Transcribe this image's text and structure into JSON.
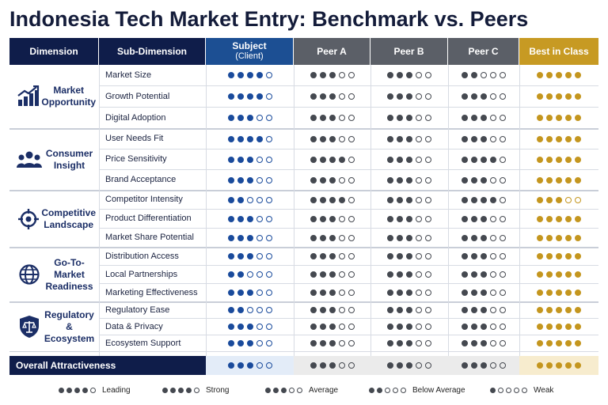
{
  "title": "Indonesia Tech Market Entry: Benchmark vs. Peers",
  "columns": {
    "dimension": "Dimension",
    "sub_dimension": "Sub-Dimension",
    "subject": "Subject",
    "subject_sub": "(Client)",
    "peer_a": "Peer A",
    "peer_b": "Peer B",
    "peer_c": "Peer C",
    "best": "Best in Class"
  },
  "colors": {
    "subject": "#1a4b9c",
    "peer": "#454950",
    "best": "#c4961f",
    "header_dark": "#0f1d4a"
  },
  "groups": [
    {
      "label": "Market Opportunity",
      "icon": "growth-chart-icon",
      "rows": [
        {
          "sub": "Market Size",
          "scores": [
            4,
            3,
            3,
            2,
            5
          ]
        },
        {
          "sub": "Growth Potential",
          "scores": [
            4,
            3,
            3,
            3,
            5
          ]
        },
        {
          "sub": "Digital Adoption",
          "scores": [
            3,
            3,
            3,
            3,
            5
          ]
        }
      ]
    },
    {
      "label": "Consumer Insight",
      "icon": "people-group-icon",
      "rows": [
        {
          "sub": "User Needs Fit",
          "scores": [
            4,
            3,
            3,
            3,
            5
          ]
        },
        {
          "sub": "Price Sensitivity",
          "scores": [
            3,
            4,
            3,
            4,
            5
          ]
        },
        {
          "sub": "Brand Acceptance",
          "scores": [
            3,
            3,
            3,
            3,
            5
          ]
        }
      ]
    },
    {
      "label": "Competitive Landscape",
      "icon": "target-crosshair-icon",
      "rows": [
        {
          "sub": "Competitor Intensity",
          "scores": [
            2,
            4,
            3,
            4,
            3
          ]
        },
        {
          "sub": "Product Differentiation",
          "scores": [
            3,
            3,
            3,
            3,
            5
          ]
        },
        {
          "sub": "Market Share Potential",
          "scores": [
            3,
            3,
            3,
            3,
            5
          ]
        }
      ]
    },
    {
      "label": "Go-To-Market Readiness",
      "icon": "globe-icon",
      "rows": [
        {
          "sub": "Distribution Access",
          "scores": [
            3,
            3,
            3,
            3,
            5
          ]
        },
        {
          "sub": "Local Partnerships",
          "scores": [
            2,
            3,
            3,
            3,
            5
          ]
        },
        {
          "sub": "Marketing Effectiveness",
          "scores": [
            3,
            3,
            3,
            3,
            5
          ]
        }
      ]
    },
    {
      "label": "Regulatory & Ecosystem",
      "icon": "scales-shield-icon",
      "rows": [
        {
          "sub": "Regulatory Ease",
          "scores": [
            2,
            3,
            3,
            3,
            5
          ]
        },
        {
          "sub": "Data & Privacy",
          "scores": [
            3,
            3,
            3,
            3,
            5
          ]
        },
        {
          "sub": "Ecosystem Support",
          "scores": [
            3,
            3,
            3,
            3,
            5
          ]
        }
      ]
    }
  ],
  "overall": {
    "label": "Overall Attractiveness",
    "scores": [
      3,
      3,
      3,
      3,
      5
    ]
  },
  "legend": [
    {
      "score": 4,
      "label": "Leading"
    },
    {
      "score": 4,
      "label": "Strong"
    },
    {
      "score": 3,
      "label": "Average"
    },
    {
      "score": 2,
      "label": "Below Average"
    },
    {
      "score": 1,
      "label": "Weak"
    }
  ]
}
